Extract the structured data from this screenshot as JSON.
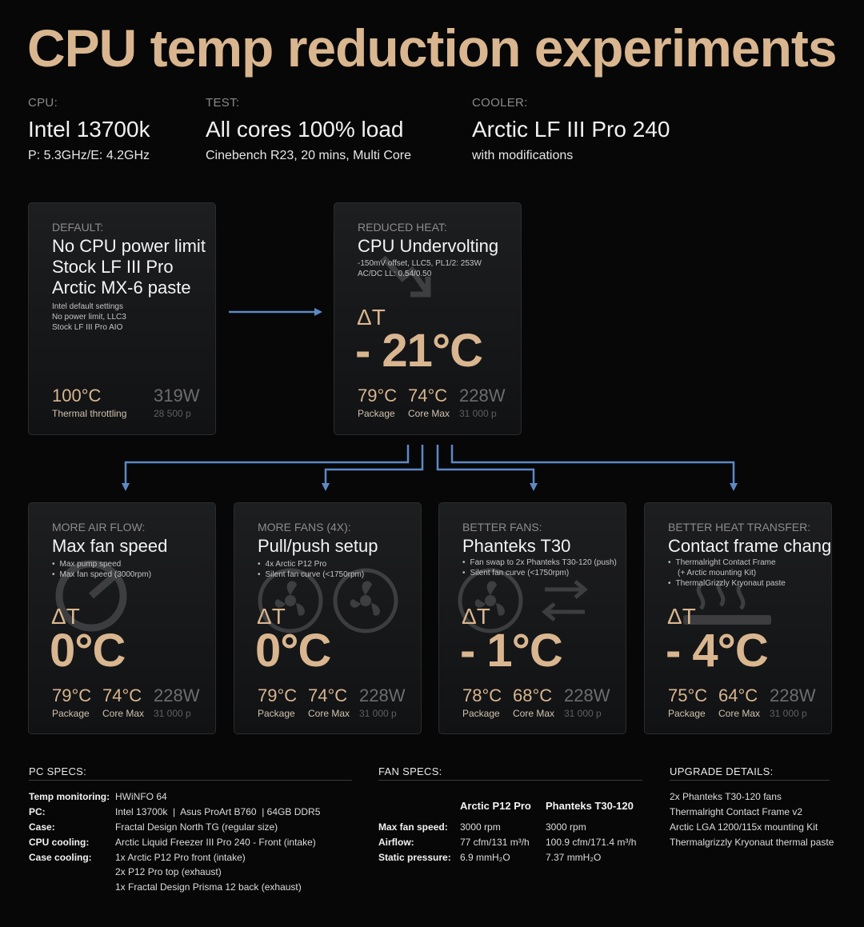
{
  "title": "CPU temp reduction experiments",
  "header": {
    "cpu": {
      "label": "CPU:",
      "value": "Intel 13700k",
      "sub": "P: 5.3GHz/E: 4.2GHz"
    },
    "test": {
      "label": "TEST:",
      "value": "All cores 100% load",
      "sub": "Cinebench R23, 20 mins, Multi Core"
    },
    "cooler": {
      "label": "COOLER:",
      "value": "Arctic LF III Pro 240",
      "sub": "with modifications"
    }
  },
  "default_card": {
    "label": "DEFAULT:",
    "title": [
      "No CPU power limit",
      "Stock LF III Pro",
      "Arctic MX-6 paste"
    ],
    "notes": [
      "Intel default settings",
      "No power limit, LLC3",
      "Stock LF III Pro AIO"
    ],
    "temp": "100°C",
    "temp_label": "Thermal throttling",
    "power": "319W",
    "score": "28 500 p"
  },
  "reduced_card": {
    "label": "REDUCED HEAT:",
    "title": "CPU Undervolting",
    "notes": [
      "-150mV offset, LLC5, PL1/2: 253W",
      "AC/DC LL: 0.54/0.50"
    ],
    "delta_symbol": "ΔT",
    "delta": "- 21°C",
    "package": "79°C",
    "package_label": "Package",
    "core": "74°C",
    "core_label": "Core Max",
    "power": "228W",
    "score": "31 000 p"
  },
  "experiments": [
    {
      "label": "MORE AIR FLOW:",
      "title": "Max fan speed",
      "notes": [
        "Max pump speed",
        "Max fan speed (3000rpm)"
      ],
      "icon": "gauge-icon",
      "delta_symbol": "ΔT",
      "delta": "0°C",
      "package": "79°C",
      "package_label": "Package",
      "core": "74°C",
      "core_label": "Core Max",
      "power": "228W",
      "score": "31 000 p"
    },
    {
      "label": "MORE FANS (4X):",
      "title": "Pull/push setup",
      "notes": [
        "4x Arctic P12 Pro",
        "Silent fan curve (<1750rpm)"
      ],
      "icon": "fan-icon",
      "delta_symbol": "ΔT",
      "delta": "0°C",
      "package": "79°C",
      "package_label": "Package",
      "core": "74°C",
      "core_label": "Core Max",
      "power": "228W",
      "score": "31 000 p"
    },
    {
      "label": "BETTER FANS:",
      "title": "Phanteks T30",
      "notes": [
        "Fan swap to 2x Phanteks T30-120 (push)",
        "Silent fan curve (<1750rpm)"
      ],
      "icon": "fan-swap-icon",
      "delta_symbol": "ΔT",
      "delta": "- 1°C",
      "package": "78°C",
      "package_label": "Package",
      "core": "68°C",
      "core_label": "Core Max",
      "power": "228W",
      "score": "31 000 p"
    },
    {
      "label": "BETTER HEAT TRANSFER:",
      "title": "Contact frame change",
      "notes": [
        "Thermalright Contact Frame",
        "(+ Arctic mounting Kit)",
        "ThermalGrizzly Kryonaut paste"
      ],
      "icon": "heat-icon",
      "delta_symbol": "ΔT",
      "delta": "- 4°C",
      "package": "75°C",
      "package_label": "Package",
      "core": "64°C",
      "core_label": "Core Max",
      "power": "228W",
      "score": "31 000 p"
    }
  ],
  "pc_specs": {
    "heading": "PC SPECS:",
    "rows": [
      {
        "k": "Temp monitoring:",
        "v": "HWiNFO 64"
      },
      {
        "k": "PC:",
        "v": "Intel 13700k  |  Asus ProArt B760  | 64GB DDR5"
      },
      {
        "k": "Case:",
        "v": "Fractal Design North TG (regular size)"
      },
      {
        "k": "CPU cooling:",
        "v": "Arctic Liquid Freezer III Pro 240 - Front (intake)"
      },
      {
        "k": "Case cooling:",
        "v": "1x Arctic P12 Pro front (intake)"
      },
      {
        "k": "",
        "v": "2x P12 Pro top (exhaust)"
      },
      {
        "k": "",
        "v": "1x Fractal Design Prisma 12 back (exhaust)"
      }
    ]
  },
  "fan_specs": {
    "heading": "FAN SPECS:",
    "columns": [
      "Arctic P12 Pro",
      "Phanteks T30-120"
    ],
    "rows": [
      {
        "k": "Max fan speed:",
        "a": "3000 rpm",
        "b": "3000 rpm"
      },
      {
        "k": "Airflow:",
        "a": "77 cfm/131 m³/h",
        "b": "100.9 cfm/171.4 m³/h"
      },
      {
        "k": "Static pressure:",
        "a": "6.9 mmH₂O",
        "b": "7.37 mmH₂O"
      }
    ]
  },
  "upgrade_details": {
    "heading": "UPGRADE DETAILS:",
    "items": [
      "2x Phanteks T30-120 fans",
      "Thermalright Contact Frame v2",
      "Arctic LGA 1200/115x mounting Kit",
      "Thermalgrizzly Kryonaut thermal paste"
    ]
  },
  "colors": {
    "accent": "#d9b68f",
    "arrow": "#5e88c4",
    "background": "#070708"
  }
}
